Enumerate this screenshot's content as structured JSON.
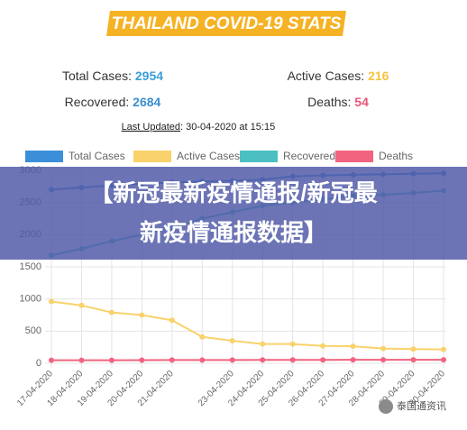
{
  "header": {
    "title": "THAILAND COVID-19 STATS"
  },
  "stats": [
    {
      "label": "Total Cases:",
      "value": 2954,
      "color": "#3b9fd8"
    },
    {
      "label": "Active Cases:",
      "value": 216,
      "color": "#f5c342"
    },
    {
      "label": "Recovered:",
      "value": 2684,
      "color": "#3b8fd0"
    },
    {
      "label": "Deaths:",
      "value": 54,
      "color": "#e8557b"
    }
  ],
  "updated": {
    "label": "Last Updated",
    "text": ": 30-04-2020 at 15:15"
  },
  "chart_data": {
    "type": "line",
    "categories": [
      "17-04-2020",
      "18-04-2020",
      "19-04-2020",
      "20-04-2020",
      "21-04-2020",
      null,
      "23-04-2020",
      "24-04-2020",
      "25-04-2020",
      "26-04-2020",
      "27-04-2020",
      "28-04-2020",
      "29-04-2020",
      "30-04-2020"
    ],
    "series": [
      {
        "name": "Total Cases",
        "color": "#3b8fd8",
        "values": [
          2700,
          2733,
          2765,
          2792,
          2811,
          2826,
          2839,
          2854,
          2907,
          2922,
          2931,
          2938,
          2947,
          2954
        ]
      },
      {
        "name": "Active Cases",
        "color": "#f9d26b",
        "values": [
          960,
          900,
          790,
          750,
          670,
          410,
          350,
          300,
          300,
          270,
          265,
          230,
          220,
          216
        ]
      },
      {
        "name": "Recovered",
        "color": "#4bbfc2",
        "values": [
          1680,
          1780,
          1900,
          2000,
          2100,
          2250,
          2350,
          2450,
          2500,
          2550,
          2600,
          2620,
          2650,
          2684
        ]
      },
      {
        "name": "Deaths",
        "color": "#f2637f",
        "values": [
          47,
          48,
          48,
          49,
          50,
          51,
          51,
          52,
          52,
          53,
          54,
          54,
          54,
          54
        ]
      }
    ],
    "ylim": [
      0,
      3000
    ],
    "yticks": [
      0,
      500,
      1000,
      1500,
      2000,
      2500,
      3000
    ],
    "grid": true,
    "legend": "top"
  },
  "overlay": {
    "lines": [
      "【新冠最新疫情通报/新冠最",
      "新疫情通报数据】"
    ]
  },
  "watermark": "泰国通资讯"
}
